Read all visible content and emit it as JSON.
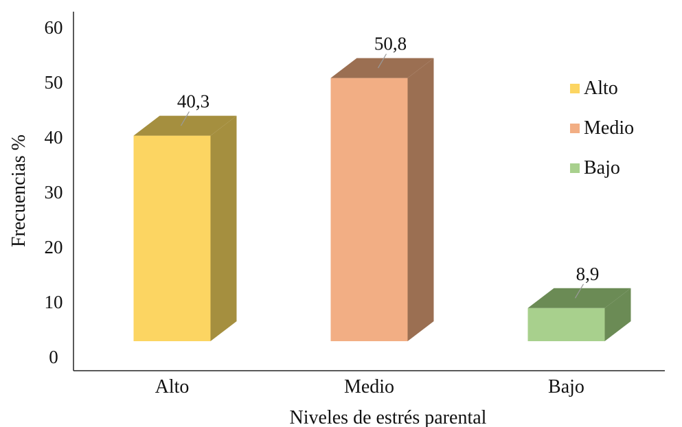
{
  "chart_data": {
    "type": "bar",
    "style": "3d-column",
    "categories": [
      "Alto",
      "Medio",
      "Bajo"
    ],
    "values": [
      40.3,
      50.8,
      8.9
    ],
    "data_labels": [
      "40,3",
      "50,8",
      "8,9"
    ],
    "colors": [
      "#fcd562",
      "#f2ae84",
      "#a8d08d"
    ],
    "side_colors": [
      "#a58f3f",
      "#9b6f52",
      "#6b8b55"
    ],
    "xlabel": "Niveles de estrés parental",
    "ylabel": "Frecuencias %",
    "ylim": [
      0,
      60
    ],
    "yticks": [
      0,
      10,
      20,
      30,
      40,
      50,
      60
    ],
    "grid": false,
    "legend": {
      "position": "right",
      "entries": [
        "Alto",
        "Medio",
        "Bajo"
      ]
    }
  }
}
